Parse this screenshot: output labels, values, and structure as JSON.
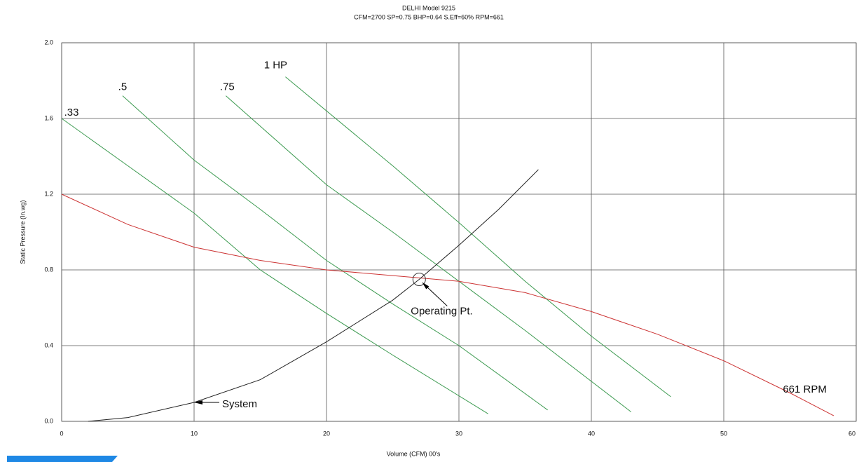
{
  "chart_data": {
    "type": "line",
    "title": "DELHI Model 9215",
    "subtitle": "CFM=2700  SP=0.75  BHP=0.64  S.Eff=60% RPM=661",
    "x_label": "Volume (CFM) 00's",
    "y_label": "Static Pressure (In.wg)",
    "xlim": [
      0,
      60
    ],
    "ylim": [
      0,
      2
    ],
    "xticks": [
      0,
      10,
      20,
      30,
      40,
      50,
      60
    ],
    "yticks": [
      {
        "value": 0,
        "label": "0.0"
      },
      0.4,
      0.8,
      1.2,
      1.6,
      {
        "value": 2,
        "label": "2.0"
      }
    ],
    "grid": true,
    "series": [
      {
        "name": ".33",
        "color": "#3c9a50",
        "x": [
          0,
          5,
          10,
          15,
          20,
          25,
          32.2
        ],
        "values": [
          1.6,
          1.35,
          1.1,
          0.8,
          0.57,
          0.35,
          0.04
        ]
      },
      {
        "name": ".5",
        "color": "#3c9a50",
        "x": [
          4.6,
          10,
          15,
          20,
          25,
          30,
          36.7
        ],
        "values": [
          1.72,
          1.38,
          1.12,
          0.85,
          0.62,
          0.4,
          0.06
        ]
      },
      {
        "name": ".75",
        "color": "#3c9a50",
        "x": [
          12.4,
          20,
          25,
          30,
          35,
          43
        ],
        "values": [
          1.72,
          1.25,
          1.0,
          0.74,
          0.48,
          0.05
        ]
      },
      {
        "name": "1 HP",
        "color": "#3c9a50",
        "x": [
          16.9,
          25,
          30,
          35,
          40,
          46
        ],
        "values": [
          1.82,
          1.35,
          1.05,
          0.74,
          0.45,
          0.13
        ]
      },
      {
        "name": "661 RPM",
        "color": "#cc3333",
        "x": [
          0,
          5,
          10,
          15,
          20,
          25,
          30,
          35,
          40,
          45,
          50,
          55,
          58.3
        ],
        "values": [
          1.2,
          1.04,
          0.92,
          0.85,
          0.8,
          0.77,
          0.74,
          0.68,
          0.58,
          0.46,
          0.32,
          0.15,
          0.03
        ]
      },
      {
        "name": "System",
        "color": "#222222",
        "x": [
          2,
          5,
          10,
          15,
          20,
          25,
          27,
          30,
          33,
          36
        ],
        "values": [
          0,
          0.02,
          0.1,
          0.22,
          0.42,
          0.64,
          0.75,
          0.93,
          1.12,
          1.33
        ]
      }
    ],
    "annotations": [
      {
        "text": "Operating Pt.",
        "x": 27,
        "y": 0.75
      }
    ]
  }
}
